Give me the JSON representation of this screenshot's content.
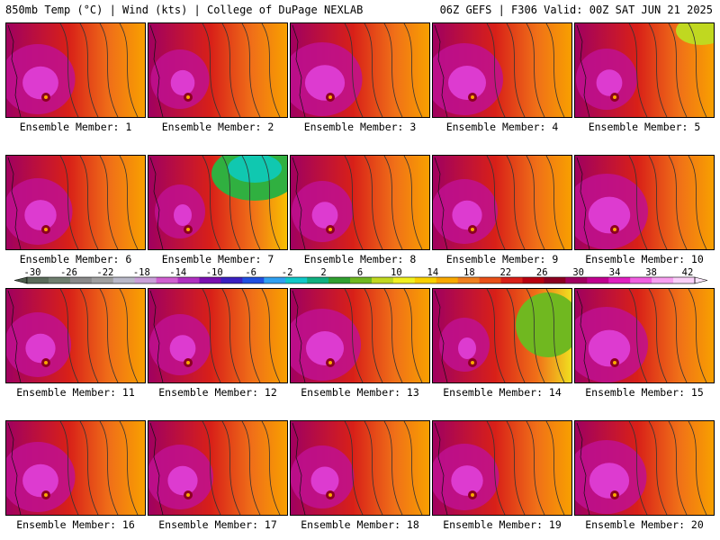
{
  "header": {
    "left": "850mb Temp (°C) | Wind (kts) | College of DuPage NEXLAB",
    "right": "06Z GEFS | F306 Valid: 00Z SAT JUN 21 2025"
  },
  "panels": [
    {
      "member": 1,
      "label": "Ensemble Member: 1",
      "warm": 0.45
    },
    {
      "member": 2,
      "label": "Ensemble Member: 2",
      "warm": 0.15
    },
    {
      "member": 3,
      "label": "Ensemble Member: 3",
      "warm": 0.55
    },
    {
      "member": 4,
      "label": "Ensemble Member: 4",
      "warm": 0.5
    },
    {
      "member": 5,
      "label": "Ensemble Member: 5",
      "warm": 0.2
    },
    {
      "member": 6,
      "label": "Ensemble Member: 6",
      "warm": 0.35
    },
    {
      "member": 7,
      "label": "Ensemble Member: 7",
      "warm": 0.0
    },
    {
      "member": 8,
      "label": "Ensemble Member: 8",
      "warm": 0.2
    },
    {
      "member": 9,
      "label": "Ensemble Member: 9",
      "warm": 0.3
    },
    {
      "member": 10,
      "label": "Ensemble Member: 10",
      "warm": 0.6
    },
    {
      "member": 11,
      "label": "Ensemble Member: 11",
      "warm": 0.3
    },
    {
      "member": 12,
      "label": "Ensemble Member: 12",
      "warm": 0.2
    },
    {
      "member": 13,
      "label": "Ensemble Member: 13",
      "warm": 0.5
    },
    {
      "member": 14,
      "label": "Ensemble Member: 14",
      "warm": 0.0
    },
    {
      "member": 15,
      "label": "Ensemble Member: 15",
      "warm": 0.6
    },
    {
      "member": 16,
      "label": "Ensemble Member: 16",
      "warm": 0.45
    },
    {
      "member": 17,
      "label": "Ensemble Member: 17",
      "warm": 0.3
    },
    {
      "member": 18,
      "label": "Ensemble Member: 18",
      "warm": 0.25
    },
    {
      "member": 19,
      "label": "Ensemble Member: 19",
      "warm": 0.35
    },
    {
      "member": 20,
      "label": "Ensemble Member: 20",
      "warm": 0.55
    }
  ],
  "colorbar": {
    "unit": "°C",
    "labels": [
      "-30",
      "-26",
      "-22",
      "-18",
      "-14",
      "-10",
      "-6",
      "-2",
      "2",
      "6",
      "10",
      "14",
      "18",
      "22",
      "26",
      "30",
      "34",
      "38",
      "42"
    ],
    "colors": [
      "#5a6b5a",
      "#6f7f6f",
      "#8a8a8a",
      "#a0a0a0",
      "#b9b9c8",
      "#c9a0d8",
      "#d060d0",
      "#b030c0",
      "#7a10b0",
      "#3a20c0",
      "#2050e0",
      "#30a0f0",
      "#10c8c8",
      "#10b080",
      "#30a030",
      "#70b820",
      "#c0d820",
      "#f0f020",
      "#f8d000",
      "#f8a800",
      "#f08020",
      "#e85018",
      "#d82018",
      "#b80010",
      "#8c0020",
      "#a00060",
      "#c00090",
      "#e020c0",
      "#f060e0",
      "#f8a0f0",
      "#fad0f8"
    ]
  }
}
